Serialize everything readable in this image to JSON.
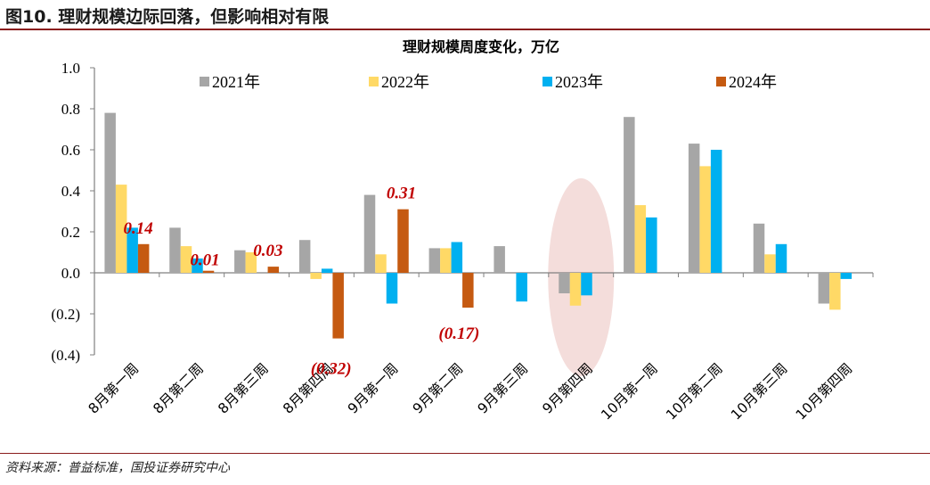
{
  "figure": {
    "title": "图10. 理财规模边际回落，但影响相对有限",
    "source": "资料来源：普益标准，国投证券研究中心"
  },
  "chart_data": {
    "type": "bar",
    "title": "理财规模周度变化，万亿",
    "xlabel": "",
    "ylabel": "",
    "ylim": [
      -0.4,
      1.0
    ],
    "ytick_values": [
      1.0,
      0.8,
      0.6,
      0.4,
      0.2,
      0.0,
      -0.2,
      -0.4
    ],
    "ytick_labels": [
      "1.0",
      "0.8",
      "0.6",
      "0.4",
      "0.2",
      "0.0",
      "(0.2)",
      "(0.4)"
    ],
    "categories": [
      "8月第一周",
      "8月第二周",
      "8月第三周",
      "8月第四周",
      "9月第一周",
      "9月第二周",
      "9月第三周",
      "9月第四周",
      "10月第一周",
      "10月第二周",
      "10月第三周",
      "10月第四周"
    ],
    "series": [
      {
        "name": "2021年",
        "color": "#a6a6a6",
        "values": [
          0.78,
          0.22,
          0.11,
          0.16,
          0.38,
          0.12,
          0.13,
          -0.1,
          0.76,
          0.63,
          0.24,
          -0.15
        ]
      },
      {
        "name": "2022年",
        "color": "#ffd966",
        "values": [
          0.43,
          0.13,
          0.1,
          -0.03,
          0.09,
          0.12,
          null,
          -0.16,
          0.33,
          0.52,
          0.09,
          -0.18
        ]
      },
      {
        "name": "2023年",
        "color": "#00b0f0",
        "values": [
          0.22,
          0.07,
          null,
          0.02,
          -0.15,
          0.15,
          -0.14,
          -0.11,
          0.27,
          0.6,
          0.14,
          -0.03
        ]
      },
      {
        "name": "2024年",
        "color": "#c55a11",
        "values": [
          0.14,
          0.01,
          0.03,
          -0.32,
          0.31,
          -0.17,
          null,
          null,
          null,
          null,
          null,
          null
        ]
      }
    ],
    "data_labels": [
      {
        "category_index": 0,
        "series_index": 3,
        "text": "0.14"
      },
      {
        "category_index": 1,
        "series_index": 3,
        "text": "0.01"
      },
      {
        "category_index": 2,
        "series_index": 3,
        "text": "0.03"
      },
      {
        "category_index": 3,
        "series_index": 3,
        "text": "(0.32)"
      },
      {
        "category_index": 4,
        "series_index": 3,
        "text": "0.31"
      },
      {
        "category_index": 5,
        "series_index": 3,
        "text": "(0.17)"
      }
    ],
    "highlight": {
      "category_index": 7,
      "color": "#f2d7d5"
    },
    "legend_position": "top"
  }
}
